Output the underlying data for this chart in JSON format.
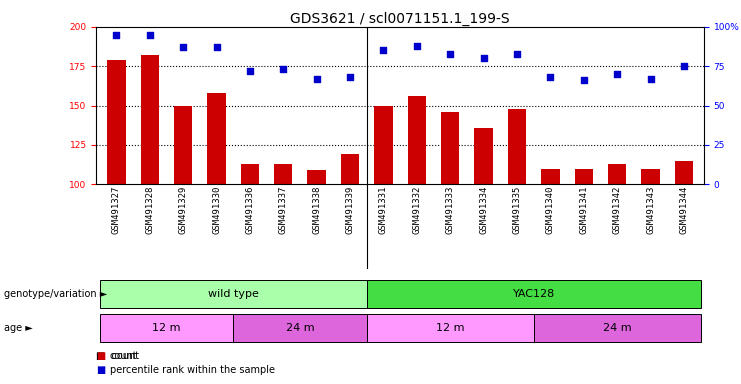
{
  "title": "GDS3621 / scl0071151.1_199-S",
  "samples": [
    "GSM491327",
    "GSM491328",
    "GSM491329",
    "GSM491330",
    "GSM491336",
    "GSM491337",
    "GSM491338",
    "GSM491339",
    "GSM491331",
    "GSM491332",
    "GSM491333",
    "GSM491334",
    "GSM491335",
    "GSM491340",
    "GSM491341",
    "GSM491342",
    "GSM491343",
    "GSM491344"
  ],
  "counts": [
    179,
    182,
    150,
    158,
    113,
    113,
    109,
    119,
    150,
    156,
    146,
    136,
    148,
    110,
    110,
    113,
    110,
    115
  ],
  "percentiles": [
    95,
    95,
    87,
    87,
    72,
    73,
    67,
    68,
    85,
    88,
    83,
    80,
    83,
    68,
    66,
    70,
    67,
    75
  ],
  "ylim_left": [
    100,
    200
  ],
  "ylim_right": [
    0,
    100
  ],
  "yticks_left": [
    100,
    125,
    150,
    175,
    200
  ],
  "yticks_right": [
    0,
    25,
    50,
    75,
    100
  ],
  "bar_color": "#CC0000",
  "dot_color": "#0000CC",
  "genotype_groups": [
    {
      "label": "wild type",
      "start": 0,
      "end": 8,
      "color": "#AAFFAA"
    },
    {
      "label": "YAC128",
      "start": 8,
      "end": 18,
      "color": "#44DD44"
    }
  ],
  "age_groups": [
    {
      "label": "12 m",
      "start": 0,
      "end": 4,
      "color": "#FF99FF"
    },
    {
      "label": "24 m",
      "start": 4,
      "end": 8,
      "color": "#DD66DD"
    },
    {
      "label": "12 m",
      "start": 8,
      "end": 13,
      "color": "#FF99FF"
    },
    {
      "label": "24 m",
      "start": 13,
      "end": 18,
      "color": "#DD66DD"
    }
  ],
  "legend_count_color": "#CC0000",
  "legend_dot_color": "#0000CC",
  "background_color": "#ffffff",
  "title_fontsize": 10,
  "tick_fontsize": 6.5,
  "label_fontsize": 8,
  "row_label_fontsize": 7
}
